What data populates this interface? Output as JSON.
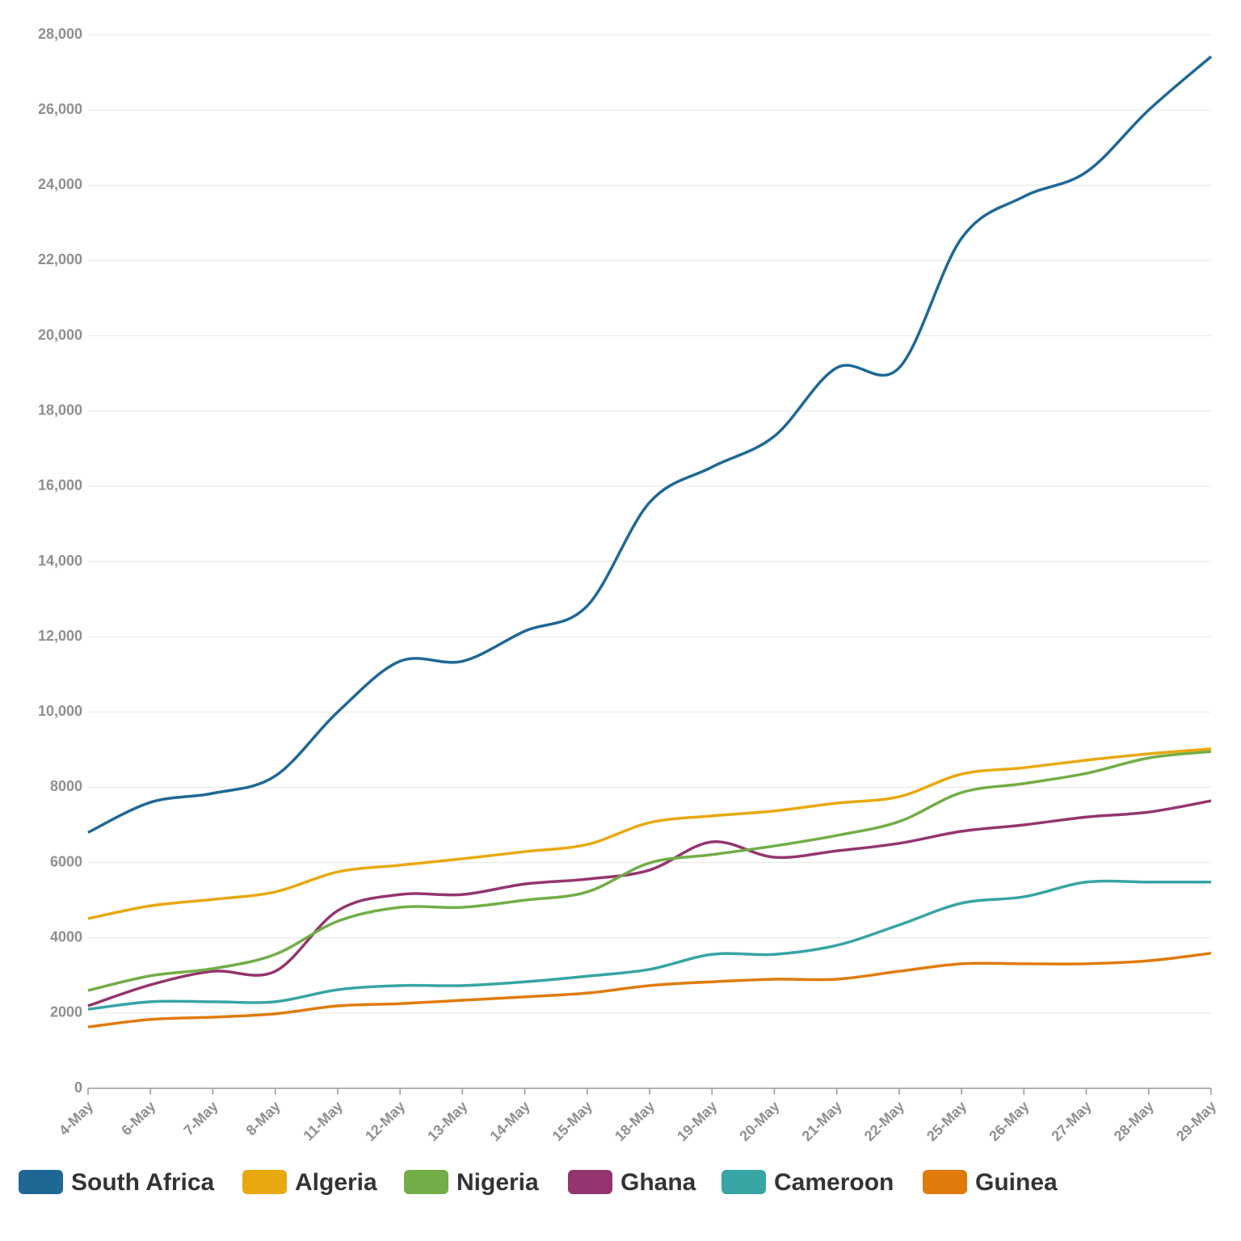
{
  "chart_data": {
    "type": "line",
    "categories": [
      "4-May",
      "6-May",
      "7-May",
      "8-May",
      "11-May",
      "12-May",
      "13-May",
      "14-May",
      "15-May",
      "18-May",
      "19-May",
      "20-May",
      "21-May",
      "22-May",
      "25-May",
      "26-May",
      "27-May",
      "28-May",
      "29-May"
    ],
    "series": [
      {
        "name": "South Africa",
        "color": "#1f6896",
        "values": [
          6800,
          7600,
          7840,
          8300,
          10000,
          11350,
          11350,
          12150,
          12820,
          15570,
          16510,
          17330,
          19150,
          19150,
          22590,
          23700,
          24350,
          26000,
          27420
        ]
      },
      {
        "name": "Algeria",
        "color": "#e8a90e",
        "values": [
          4510,
          4850,
          5020,
          5220,
          5750,
          5930,
          6100,
          6290,
          6480,
          7060,
          7240,
          7370,
          7580,
          7750,
          8350,
          8520,
          8720,
          8890,
          9020
        ]
      },
      {
        "name": "Nigeria",
        "color": "#72ad47",
        "values": [
          2600,
          2990,
          3180,
          3560,
          4440,
          4810,
          4810,
          5000,
          5220,
          5990,
          6210,
          6440,
          6720,
          7090,
          7860,
          8100,
          8370,
          8780,
          8950
        ]
      },
      {
        "name": "Ghana",
        "color": "#94356e",
        "values": [
          2190,
          2750,
          3110,
          3110,
          4720,
          5150,
          5150,
          5430,
          5560,
          5800,
          6550,
          6140,
          6310,
          6510,
          6830,
          7000,
          7210,
          7340,
          7640
        ]
      },
      {
        "name": "Cameroon",
        "color": "#36a5a4",
        "values": [
          2100,
          2300,
          2300,
          2300,
          2620,
          2730,
          2730,
          2830,
          2980,
          3160,
          3560,
          3560,
          3800,
          4340,
          4920,
          5090,
          5480,
          5480,
          5480
        ]
      },
      {
        "name": "Guinea",
        "color": "#e07b0b",
        "values": [
          1630,
          1830,
          1890,
          1980,
          2190,
          2250,
          2340,
          2430,
          2530,
          2730,
          2830,
          2900,
          2900,
          3110,
          3310,
          3310,
          3310,
          3390,
          3590
        ]
      }
    ],
    "ylim": [
      0,
      28000
    ],
    "yticks": [
      0,
      2000,
      4000,
      6000,
      8000,
      {
        "value": 10000,
        "label": "10,000"
      },
      {
        "value": 12000,
        "label": "12,000"
      },
      {
        "value": 14000,
        "label": "14,000"
      },
      {
        "value": 16000,
        "label": "16,000"
      },
      {
        "value": 18000,
        "label": "18,000"
      },
      {
        "value": 20000,
        "label": "20,000"
      },
      {
        "value": 22000,
        "label": "22,000"
      },
      {
        "value": 24000,
        "label": "24,000"
      },
      {
        "value": 26000,
        "label": "26,000"
      },
      {
        "value": 28000,
        "label": "28,000"
      }
    ],
    "grid": true,
    "legend": "bottom"
  }
}
